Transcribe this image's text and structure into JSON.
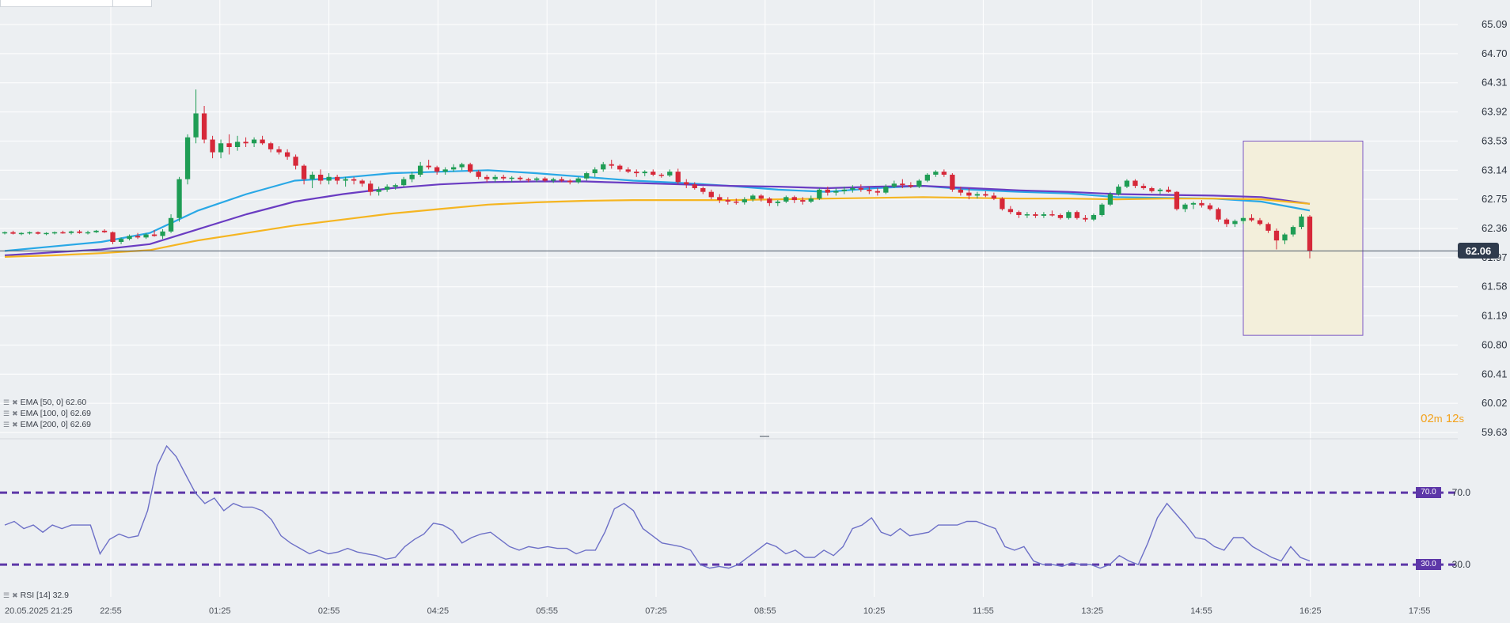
{
  "chart_data": {
    "type": "candlestick",
    "price_axis": {
      "ticks": [
        "65.09",
        "64.70",
        "64.31",
        "63.92",
        "63.53",
        "63.14",
        "62.75",
        "62.36",
        "61.97",
        "61.58",
        "61.19",
        "60.80",
        "60.41",
        "60.02",
        "59.63"
      ],
      "ylim": [
        59.63,
        65.09
      ]
    },
    "time_axis": {
      "ticks": [
        "20.05.2025  21:25",
        "22:55",
        "01:25",
        "02:55",
        "04:25",
        "05:55",
        "07:25",
        "08:55",
        "10:25",
        "11:55",
        "13:25",
        "14:55",
        "16:25",
        "17:55"
      ]
    },
    "current_price": "62.06",
    "countdown": {
      "min": "02",
      "min_unit": "m",
      "sec": "12",
      "sec_unit": "s"
    },
    "candles_ohlc": [
      [
        62.3,
        62.32,
        62.28,
        62.31
      ],
      [
        62.31,
        62.33,
        62.28,
        62.29
      ],
      [
        62.29,
        62.31,
        62.27,
        62.3
      ],
      [
        62.3,
        62.32,
        62.28,
        62.31
      ],
      [
        62.31,
        62.32,
        62.28,
        62.29
      ],
      [
        62.29,
        62.31,
        62.27,
        62.3
      ],
      [
        62.3,
        62.32,
        62.28,
        62.31
      ],
      [
        62.31,
        62.33,
        62.29,
        62.3
      ],
      [
        62.3,
        62.33,
        62.28,
        62.32
      ],
      [
        62.32,
        62.34,
        62.29,
        62.3
      ],
      [
        62.3,
        62.33,
        62.28,
        62.31
      ],
      [
        62.31,
        62.34,
        62.3,
        62.33
      ],
      [
        62.33,
        62.35,
        62.3,
        62.31
      ],
      [
        62.31,
        62.32,
        62.15,
        62.18
      ],
      [
        62.18,
        62.24,
        62.15,
        62.22
      ],
      [
        62.22,
        62.28,
        62.2,
        62.26
      ],
      [
        62.26,
        62.3,
        62.22,
        62.24
      ],
      [
        62.24,
        62.3,
        62.22,
        62.28
      ],
      [
        62.28,
        62.34,
        62.25,
        62.26
      ],
      [
        62.26,
        62.35,
        62.22,
        62.32
      ],
      [
        62.32,
        62.55,
        62.3,
        62.5
      ],
      [
        62.5,
        63.05,
        62.45,
        63.02
      ],
      [
        63.02,
        63.62,
        62.95,
        63.58
      ],
      [
        63.58,
        64.22,
        63.5,
        63.9
      ],
      [
        63.9,
        64.0,
        63.5,
        63.55
      ],
      [
        63.55,
        63.6,
        63.3,
        63.38
      ],
      [
        63.38,
        63.55,
        63.3,
        63.5
      ],
      [
        63.5,
        63.62,
        63.35,
        63.45
      ],
      [
        63.45,
        63.6,
        63.4,
        63.52
      ],
      [
        63.52,
        63.58,
        63.45,
        63.5
      ],
      [
        63.5,
        63.58,
        63.45,
        63.55
      ],
      [
        63.55,
        63.6,
        63.48,
        63.5
      ],
      [
        63.5,
        63.52,
        63.38,
        63.42
      ],
      [
        63.42,
        63.46,
        63.35,
        63.38
      ],
      [
        63.38,
        63.42,
        63.28,
        63.32
      ],
      [
        63.32,
        63.35,
        63.15,
        63.2
      ],
      [
        63.2,
        63.22,
        62.95,
        63.02
      ],
      [
        63.02,
        63.12,
        62.9,
        63.08
      ],
      [
        63.08,
        63.15,
        62.95,
        63.0
      ],
      [
        63.0,
        63.1,
        62.95,
        63.05
      ],
      [
        63.05,
        63.08,
        62.95,
        63.0
      ],
      [
        63.0,
        63.05,
        62.92,
        63.02
      ],
      [
        63.02,
        63.05,
        62.95,
        63.0
      ],
      [
        63.0,
        63.02,
        62.92,
        62.96
      ],
      [
        62.96,
        63.0,
        62.8,
        62.85
      ],
      [
        62.85,
        62.92,
        62.8,
        62.88
      ],
      [
        62.88,
        62.95,
        62.85,
        62.92
      ],
      [
        62.92,
        62.96,
        62.88,
        62.94
      ],
      [
        62.94,
        63.05,
        62.92,
        63.02
      ],
      [
        63.02,
        63.12,
        62.98,
        63.08
      ],
      [
        63.08,
        63.25,
        63.05,
        63.2
      ],
      [
        63.2,
        63.28,
        63.15,
        63.18
      ],
      [
        63.18,
        63.2,
        63.08,
        63.12
      ],
      [
        63.12,
        63.18,
        63.08,
        63.15
      ],
      [
        63.15,
        63.22,
        63.12,
        63.18
      ],
      [
        63.18,
        63.24,
        63.14,
        63.22
      ],
      [
        63.22,
        63.24,
        63.1,
        63.12
      ],
      [
        63.12,
        63.14,
        63.02,
        63.05
      ],
      [
        63.05,
        63.08,
        62.98,
        63.02
      ],
      [
        63.02,
        63.08,
        62.98,
        63.05
      ],
      [
        63.05,
        63.08,
        63.0,
        63.03
      ],
      [
        63.03,
        63.06,
        62.98,
        63.04
      ],
      [
        63.04,
        63.06,
        63.0,
        63.02
      ],
      [
        63.02,
        63.04,
        62.98,
        63.01
      ],
      [
        63.01,
        63.05,
        62.98,
        63.03
      ],
      [
        63.03,
        63.05,
        62.98,
        63.0
      ],
      [
        63.0,
        63.04,
        62.97,
        63.02
      ],
      [
        63.02,
        63.05,
        62.98,
        63.0
      ],
      [
        63.0,
        63.02,
        62.95,
        62.98
      ],
      [
        62.98,
        63.05,
        62.96,
        63.03
      ],
      [
        63.03,
        63.12,
        63.0,
        63.1
      ],
      [
        63.1,
        63.18,
        63.05,
        63.15
      ],
      [
        63.15,
        63.25,
        63.12,
        63.22
      ],
      [
        63.22,
        63.28,
        63.16,
        63.2
      ],
      [
        63.2,
        63.22,
        63.12,
        63.15
      ],
      [
        63.15,
        63.18,
        63.1,
        63.12
      ],
      [
        63.12,
        63.15,
        63.05,
        63.1
      ],
      [
        63.1,
        63.14,
        63.06,
        63.12
      ],
      [
        63.12,
        63.15,
        63.06,
        63.08
      ],
      [
        63.08,
        63.1,
        63.04,
        63.07
      ],
      [
        63.07,
        63.15,
        63.05,
        63.12
      ],
      [
        63.12,
        63.16,
        62.95,
        62.98
      ],
      [
        62.98,
        63.02,
        62.9,
        62.95
      ],
      [
        62.95,
        62.98,
        62.88,
        62.9
      ],
      [
        62.9,
        62.92,
        62.82,
        62.85
      ],
      [
        62.85,
        62.88,
        62.75,
        62.78
      ],
      [
        62.78,
        62.82,
        62.7,
        62.74
      ],
      [
        62.74,
        62.78,
        62.68,
        62.72
      ],
      [
        62.72,
        62.76,
        62.68,
        62.71
      ],
      [
        62.71,
        62.78,
        62.68,
        62.75
      ],
      [
        62.75,
        62.82,
        62.72,
        62.8
      ],
      [
        62.8,
        62.82,
        62.72,
        62.76
      ],
      [
        62.76,
        62.78,
        62.66,
        62.7
      ],
      [
        62.7,
        62.74,
        62.66,
        62.72
      ],
      [
        62.72,
        62.8,
        62.7,
        62.78
      ],
      [
        62.78,
        62.8,
        62.7,
        62.74
      ],
      [
        62.74,
        62.78,
        62.68,
        62.72
      ],
      [
        62.72,
        62.8,
        62.7,
        62.76
      ],
      [
        62.76,
        62.9,
        62.74,
        62.88
      ],
      [
        62.88,
        62.92,
        62.8,
        62.84
      ],
      [
        62.84,
        62.9,
        62.8,
        62.86
      ],
      [
        62.86,
        62.92,
        62.82,
        62.88
      ],
      [
        62.88,
        62.94,
        62.84,
        62.9
      ],
      [
        62.9,
        62.95,
        62.85,
        62.88
      ],
      [
        62.88,
        62.92,
        62.82,
        62.86
      ],
      [
        62.86,
        62.9,
        62.8,
        62.84
      ],
      [
        62.84,
        62.95,
        62.82,
        62.92
      ],
      [
        62.92,
        63.0,
        62.9,
        62.96
      ],
      [
        62.96,
        63.02,
        62.9,
        62.94
      ],
      [
        62.94,
        62.98,
        62.9,
        62.92
      ],
      [
        62.92,
        63.02,
        62.9,
        63.0
      ],
      [
        63.0,
        63.1,
        62.98,
        63.08
      ],
      [
        63.08,
        63.14,
        63.05,
        63.12
      ],
      [
        63.12,
        63.15,
        63.05,
        63.08
      ],
      [
        63.08,
        63.1,
        62.85,
        62.88
      ],
      [
        62.88,
        62.92,
        62.8,
        62.84
      ],
      [
        62.84,
        62.9,
        62.75,
        62.8
      ],
      [
        62.8,
        62.85,
        62.76,
        62.82
      ],
      [
        62.82,
        62.86,
        62.78,
        62.8
      ],
      [
        62.8,
        62.84,
        62.74,
        62.76
      ],
      [
        62.76,
        62.78,
        62.6,
        62.62
      ],
      [
        62.62,
        62.66,
        62.55,
        62.58
      ],
      [
        62.58,
        62.6,
        62.5,
        62.54
      ],
      [
        62.54,
        62.58,
        62.5,
        62.55
      ],
      [
        62.55,
        62.58,
        62.5,
        62.53
      ],
      [
        62.53,
        62.58,
        62.5,
        62.55
      ],
      [
        62.55,
        62.6,
        62.52,
        62.54
      ],
      [
        62.54,
        62.56,
        62.48,
        62.5
      ],
      [
        62.5,
        62.6,
        62.48,
        62.58
      ],
      [
        62.58,
        62.6,
        62.48,
        62.5
      ],
      [
        62.5,
        62.54,
        62.45,
        62.48
      ],
      [
        62.48,
        62.56,
        62.46,
        62.54
      ],
      [
        62.54,
        62.7,
        62.52,
        62.68
      ],
      [
        62.68,
        62.85,
        62.66,
        62.82
      ],
      [
        62.82,
        62.95,
        62.8,
        62.92
      ],
      [
        62.92,
        63.02,
        62.9,
        63.0
      ],
      [
        63.0,
        63.02,
        62.9,
        62.93
      ],
      [
        62.93,
        62.96,
        62.88,
        62.9
      ],
      [
        62.9,
        62.92,
        62.84,
        62.86
      ],
      [
        62.86,
        62.9,
        62.82,
        62.88
      ],
      [
        62.88,
        62.92,
        62.84,
        62.85
      ],
      [
        62.85,
        62.86,
        62.6,
        62.62
      ],
      [
        62.62,
        62.7,
        62.58,
        62.68
      ],
      [
        62.68,
        62.72,
        62.62,
        62.7
      ],
      [
        62.7,
        62.74,
        62.64,
        62.67
      ],
      [
        62.67,
        62.7,
        62.6,
        62.62
      ],
      [
        62.62,
        62.64,
        62.45,
        62.48
      ],
      [
        62.48,
        62.5,
        62.38,
        62.42
      ],
      [
        62.42,
        62.48,
        62.38,
        62.46
      ],
      [
        62.46,
        62.52,
        62.42,
        62.5
      ],
      [
        62.5,
        62.55,
        62.45,
        62.47
      ],
      [
        62.47,
        62.5,
        62.4,
        62.42
      ],
      [
        62.42,
        62.44,
        62.3,
        62.33
      ],
      [
        62.33,
        62.36,
        62.08,
        62.2
      ],
      [
        62.2,
        62.3,
        62.15,
        62.28
      ],
      [
        62.28,
        62.4,
        62.25,
        62.38
      ],
      [
        62.38,
        62.55,
        62.35,
        62.52
      ],
      [
        62.52,
        62.54,
        61.96,
        62.06
      ]
    ],
    "series": [
      {
        "name": "EMA [50, 0]",
        "display": "62.60",
        "color": "#29a8e6",
        "values": [
          62.06,
          62.12,
          62.18,
          62.3,
          62.6,
          62.82,
          63.0,
          63.04,
          63.1,
          63.12,
          63.14,
          63.1,
          63.05,
          63.0,
          62.97,
          62.93,
          62.88,
          62.85,
          62.9,
          62.93,
          62.88,
          62.85,
          62.83,
          62.78,
          62.77,
          62.76,
          62.72,
          62.6
        ]
      },
      {
        "name": "EMA [100, 0]",
        "display": "62.69",
        "color": "#6a3cc2",
        "values": [
          62.0,
          62.04,
          62.08,
          62.15,
          62.35,
          62.55,
          62.72,
          62.82,
          62.9,
          62.95,
          62.98,
          62.99,
          62.99,
          62.97,
          62.95,
          62.93,
          62.92,
          62.9,
          62.92,
          62.93,
          62.9,
          62.87,
          62.85,
          62.82,
          62.81,
          62.8,
          62.78,
          62.69
        ]
      },
      {
        "name": "EMA [200, 0]",
        "display": "62.69",
        "color": "#f5b521",
        "values": [
          61.98,
          62.0,
          62.03,
          62.07,
          62.2,
          62.3,
          62.4,
          62.48,
          62.56,
          62.62,
          62.68,
          62.71,
          62.73,
          62.74,
          62.74,
          62.74,
          62.75,
          62.76,
          62.77,
          62.78,
          62.77,
          62.76,
          62.76,
          62.75,
          62.76,
          62.76,
          62.75,
          62.69
        ]
      }
    ],
    "rsi": {
      "name": "RSI [14]",
      "display": "32.9",
      "levels": [
        "70.0",
        "30.0"
      ],
      "values": [
        52,
        54,
        50,
        52,
        48,
        52,
        50,
        52,
        52,
        52,
        36,
        44,
        47,
        45,
        46,
        60,
        85,
        96,
        90,
        80,
        70,
        64,
        67,
        60,
        64,
        62,
        62,
        60,
        55,
        46,
        42,
        39,
        36,
        38,
        36,
        37,
        39,
        37,
        36,
        35,
        33,
        34,
        40,
        44,
        47,
        53,
        52,
        49,
        42,
        45,
        47,
        48,
        44,
        40,
        38,
        40,
        39,
        40,
        39,
        39,
        36,
        38,
        38,
        48,
        61,
        64,
        60,
        50,
        46,
        42,
        41,
        40,
        38,
        30,
        28,
        29,
        28,
        30,
        34,
        38,
        42,
        40,
        36,
        38,
        34,
        34,
        38,
        35,
        40,
        50,
        52,
        56,
        48,
        46,
        50,
        46,
        47,
        48,
        52,
        52,
        52,
        54,
        54,
        52,
        50,
        40,
        38,
        40,
        32,
        30,
        30,
        29,
        31,
        30,
        30,
        28,
        30,
        35,
        32,
        30,
        42,
        56,
        64,
        58,
        52,
        45,
        44,
        40,
        38,
        45,
        45,
        40,
        37,
        34,
        32,
        40,
        34,
        32
      ]
    },
    "legend_placement": "bottom-left",
    "grid": true
  }
}
